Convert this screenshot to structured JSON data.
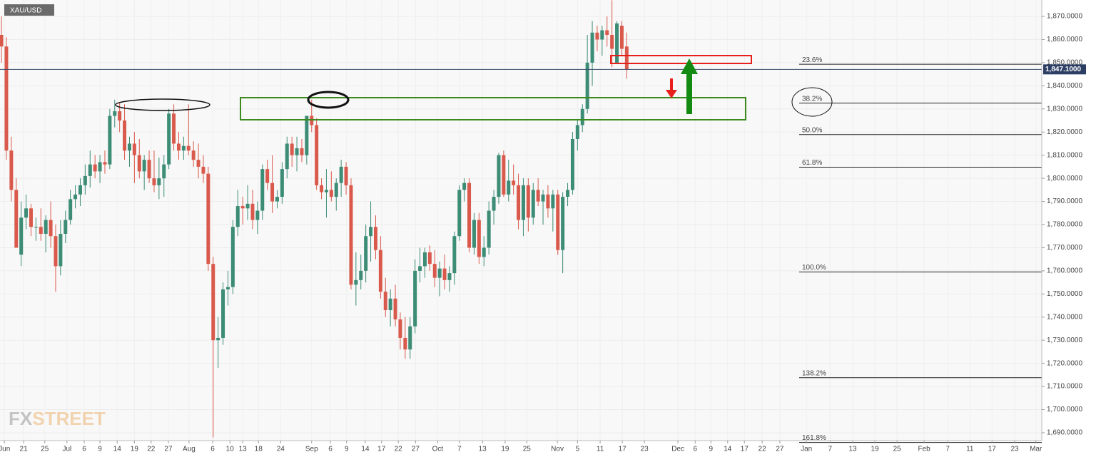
{
  "chart_data": {
    "type": "candlestick",
    "symbol": "XAU/USD",
    "open": [
      1862,
      1857,
      1812,
      1795,
      1767,
      1783,
      1787,
      1779,
      1779,
      1776,
      1782,
      1775,
      1762,
      1776,
      1782,
      1791,
      1793,
      1797,
      1801,
      1806,
      1803,
      1807,
      1806,
      1827,
      1829,
      1825,
      1812,
      1815,
      1810,
      1803,
      1808,
      1800,
      1797,
      1800,
      1806,
      1828,
      1815,
      1812,
      1814,
      1812,
      1808,
      1805,
      1802,
      1763,
      1730,
      1731,
      1752,
      1753,
      1779,
      1788,
      1787,
      1789,
      1782,
      1786,
      1804,
      1798,
      1790,
      1792,
      1804,
      1815,
      1810,
      1813,
      1810,
      1827,
      1823,
      1797,
      1794,
      1795,
      1792,
      1798,
      1805,
      1797,
      1754,
      1756,
      1760,
      1775,
      1779,
      1769,
      1751,
      1743,
      1748,
      1739,
      1731,
      1726,
      1736,
      1760,
      1762,
      1768,
      1763,
      1757,
      1761,
      1756,
      1759,
      1775,
      1795,
      1798,
      1770,
      1782,
      1766,
      1770,
      1786,
      1792,
      1810,
      1793,
      1799,
      1797,
      1782,
      1797,
      1783,
      1795,
      1790,
      1793,
      1787,
      1793,
      1769,
      1792,
      1795,
      1817,
      1823,
      1830,
      1850,
      1863,
      1860,
      1864,
      1862,
      1850,
      1866,
      1857
    ],
    "high": [
      1870,
      1861,
      1818,
      1800,
      1790,
      1793,
      1789,
      1783,
      1787,
      1784,
      1790,
      1780,
      1782,
      1786,
      1795,
      1797,
      1800,
      1806,
      1812,
      1810,
      1810,
      1812,
      1830,
      1834,
      1833,
      1832,
      1818,
      1820,
      1817,
      1810,
      1812,
      1812,
      1809,
      1810,
      1830,
      1832,
      1820,
      1818,
      1832,
      1816,
      1815,
      1810,
      1805,
      1766,
      1740,
      1755,
      1760,
      1782,
      1795,
      1792,
      1797,
      1795,
      1790,
      1806,
      1808,
      1810,
      1795,
      1807,
      1818,
      1818,
      1818,
      1817,
      1827,
      1834,
      1826,
      1800,
      1804,
      1803,
      1800,
      1808,
      1807,
      1800,
      1768,
      1767,
      1780,
      1790,
      1784,
      1775,
      1757,
      1752,
      1754,
      1742,
      1740,
      1740,
      1765,
      1770,
      1770,
      1771,
      1769,
      1764,
      1767,
      1762,
      1777,
      1797,
      1800,
      1800,
      1785,
      1785,
      1775,
      1790,
      1795,
      1811,
      1812,
      1808,
      1806,
      1802,
      1800,
      1800,
      1798,
      1800,
      1795,
      1797,
      1795,
      1795,
      1794,
      1798,
      1820,
      1825,
      1832,
      1862,
      1868,
      1866,
      1866,
      1870,
      1877,
      1868,
      1868,
      1863
    ],
    "low": [
      1850,
      1808,
      1790,
      1770,
      1762,
      1778,
      1775,
      1773,
      1773,
      1768,
      1770,
      1751,
      1758,
      1772,
      1780,
      1787,
      1788,
      1793,
      1796,
      1800,
      1798,
      1802,
      1804,
      1822,
      1820,
      1808,
      1805,
      1798,
      1800,
      1795,
      1798,
      1794,
      1791,
      1792,
      1804,
      1812,
      1808,
      1808,
      1810,
      1805,
      1800,
      1798,
      1760,
      1688,
      1718,
      1728,
      1745,
      1750,
      1775,
      1780,
      1782,
      1778,
      1776,
      1782,
      1795,
      1785,
      1787,
      1789,
      1800,
      1805,
      1803,
      1807,
      1806,
      1820,
      1795,
      1791,
      1783,
      1790,
      1786,
      1792,
      1793,
      1752,
      1745,
      1752,
      1755,
      1764,
      1765,
      1748,
      1740,
      1736,
      1736,
      1726,
      1722,
      1722,
      1733,
      1755,
      1757,
      1760,
      1753,
      1749,
      1752,
      1751,
      1754,
      1773,
      1790,
      1768,
      1767,
      1763,
      1762,
      1767,
      1780,
      1789,
      1792,
      1790,
      1793,
      1778,
      1775,
      1777,
      1780,
      1788,
      1780,
      1783,
      1777,
      1767,
      1759,
      1788,
      1793,
      1812,
      1820,
      1828,
      1840,
      1855,
      1853,
      1857,
      1848,
      1850,
      1853,
      1843
    ],
    "close": [
      1857,
      1812,
      1795,
      1770,
      1783,
      1787,
      1779,
      1779,
      1776,
      1782,
      1775,
      1762,
      1776,
      1782,
      1791,
      1793,
      1797,
      1801,
      1806,
      1803,
      1807,
      1806,
      1827,
      1829,
      1825,
      1812,
      1815,
      1810,
      1803,
      1808,
      1800,
      1797,
      1800,
      1806,
      1828,
      1815,
      1812,
      1814,
      1812,
      1808,
      1805,
      1802,
      1763,
      1730,
      1731,
      1752,
      1753,
      1779,
      1788,
      1787,
      1789,
      1782,
      1786,
      1804,
      1798,
      1790,
      1792,
      1804,
      1815,
      1810,
      1813,
      1810,
      1827,
      1823,
      1797,
      1794,
      1795,
      1792,
      1798,
      1805,
      1797,
      1754,
      1756,
      1760,
      1775,
      1779,
      1769,
      1751,
      1743,
      1748,
      1739,
      1731,
      1726,
      1736,
      1760,
      1762,
      1768,
      1763,
      1757,
      1761,
      1756,
      1759,
      1775,
      1795,
      1798,
      1770,
      1782,
      1766,
      1770,
      1786,
      1792,
      1810,
      1793,
      1799,
      1797,
      1782,
      1797,
      1783,
      1795,
      1790,
      1793,
      1787,
      1793,
      1769,
      1792,
      1795,
      1817,
      1823,
      1830,
      1850,
      1863,
      1860,
      1864,
      1862,
      1856,
      1867,
      1856,
      1847
    ],
    "up_color": "#3c8c76",
    "down_color": "#d95a4c",
    "ylim": [
      1686.6,
      1877.1
    ],
    "xlim": [
      -0.3,
      211.3
    ],
    "grid": true,
    "yticks": [
      {
        "value": 1690,
        "label": "1,690.0000"
      },
      {
        "value": 1700,
        "label": "1,700.0000"
      },
      {
        "value": 1710,
        "label": "1,710.0000"
      },
      {
        "value": 1720,
        "label": "1,720.0000"
      },
      {
        "value": 1730,
        "label": "1,730.0000"
      },
      {
        "value": 1740,
        "label": "1,740.0000"
      },
      {
        "value": 1750,
        "label": "1,750.0000"
      },
      {
        "value": 1760,
        "label": "1,760.0000"
      },
      {
        "value": 1770,
        "label": "1,770.0000"
      },
      {
        "value": 1780,
        "label": "1,780.0000"
      },
      {
        "value": 1790,
        "label": "1,790.0000"
      },
      {
        "value": 1800,
        "label": "1,800.0000"
      },
      {
        "value": 1810,
        "label": "1,810.0000"
      },
      {
        "value": 1820,
        "label": "1,820.0000"
      },
      {
        "value": 1830,
        "label": "1,830.0000"
      },
      {
        "value": 1840,
        "label": "1,840.0000"
      },
      {
        "value": 1850,
        "label": "1,850.0000"
      },
      {
        "value": 1860,
        "label": "1,860.0000"
      },
      {
        "value": 1870,
        "label": "1,870.0000"
      }
    ],
    "xticks": [
      {
        "value": 0.6,
        "label": "Jun"
      },
      {
        "value": 4.5,
        "label": "21"
      },
      {
        "value": 8.8,
        "label": "25"
      },
      {
        "value": 13.3,
        "label": "Jul"
      },
      {
        "value": 16.8,
        "label": "6"
      },
      {
        "value": 20,
        "label": "9"
      },
      {
        "value": 23.5,
        "label": "14"
      },
      {
        "value": 27,
        "label": "19"
      },
      {
        "value": 30.4,
        "label": "22"
      },
      {
        "value": 33.9,
        "label": "27"
      },
      {
        "value": 38.1,
        "label": "Aug"
      },
      {
        "value": 42.9,
        "label": "6"
      },
      {
        "value": 46.4,
        "label": "10"
      },
      {
        "value": 49,
        "label": "13"
      },
      {
        "value": 52.2,
        "label": "18"
      },
      {
        "value": 56.7,
        "label": "24"
      },
      {
        "value": 63,
        "label": "Sep"
      },
      {
        "value": 66.8,
        "label": "6"
      },
      {
        "value": 70.1,
        "label": "9"
      },
      {
        "value": 73.9,
        "label": "14"
      },
      {
        "value": 77.2,
        "label": "17"
      },
      {
        "value": 80.6,
        "label": "22"
      },
      {
        "value": 84.1,
        "label": "27"
      },
      {
        "value": 88.6,
        "label": "Oct"
      },
      {
        "value": 93,
        "label": "7"
      },
      {
        "value": 97.7,
        "label": "13"
      },
      {
        "value": 102.3,
        "label": "19"
      },
      {
        "value": 106.7,
        "label": "25"
      },
      {
        "value": 112.9,
        "label": "Nov"
      },
      {
        "value": 117,
        "label": "5"
      },
      {
        "value": 121.6,
        "label": "11"
      },
      {
        "value": 126.1,
        "label": "17"
      },
      {
        "value": 130.6,
        "label": "23"
      },
      {
        "value": 137.4,
        "label": "Dec"
      },
      {
        "value": 140.9,
        "label": "6"
      },
      {
        "value": 144.1,
        "label": "9"
      },
      {
        "value": 147.5,
        "label": "14"
      },
      {
        "value": 150.9,
        "label": "17"
      },
      {
        "value": 154.5,
        "label": "22"
      },
      {
        "value": 158.1,
        "label": "27"
      },
      {
        "value": 163.5,
        "label": "Jan"
      },
      {
        "value": 168.3,
        "label": "7"
      },
      {
        "value": 172.9,
        "label": "13"
      },
      {
        "value": 177.4,
        "label": "19"
      },
      {
        "value": 181.9,
        "label": "25"
      },
      {
        "value": 187.4,
        "label": "Feb"
      },
      {
        "value": 192.2,
        "label": "7"
      },
      {
        "value": 196.7,
        "label": "11"
      },
      {
        "value": 201.2,
        "label": "17"
      },
      {
        "value": 205.8,
        "label": "23"
      },
      {
        "value": 210.1,
        "label": "Mar"
      }
    ],
    "last_price": {
      "value": 1847.1,
      "label": "1,847.1000"
    },
    "fib_levels": [
      {
        "label": "23.6%",
        "price": 1849.3
      },
      {
        "label": "38.2%",
        "price": 1832.5
      },
      {
        "label": "50.0%",
        "price": 1818.9
      },
      {
        "label": "61.8%",
        "price": 1804.8
      },
      {
        "label": "100.0%",
        "price": 1759.5
      },
      {
        "label": "138.2%",
        "price": 1713.8
      },
      {
        "label": "161.8%",
        "price": 1685.8
      }
    ],
    "watermark": [
      "FX",
      "STREET"
    ]
  }
}
